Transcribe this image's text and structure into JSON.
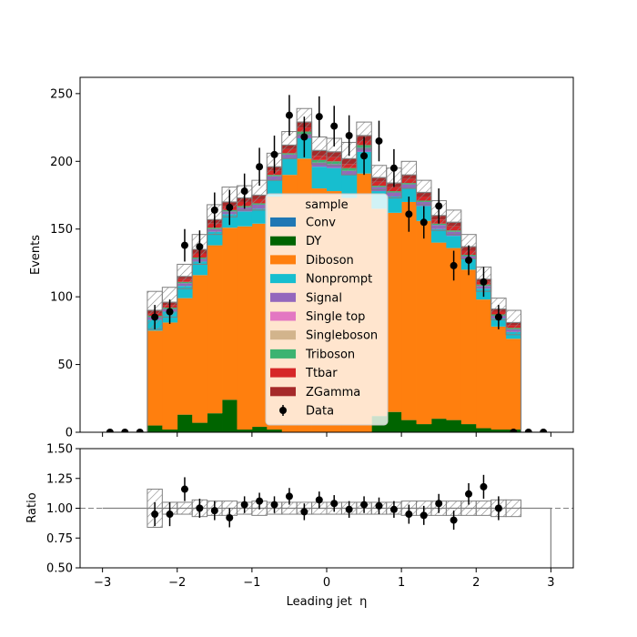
{
  "chart_data": {
    "type": "bar",
    "stacked": true,
    "xlabel": "Leading jet  η",
    "ylabel_top": "Events",
    "ylabel_bottom": "Ratio",
    "xlim": [
      -3.3,
      3.3
    ],
    "ylim_top": [
      0,
      262
    ],
    "ylim_bottom": [
      0.5,
      1.5
    ],
    "x_ticks": [
      "−3",
      "−2",
      "−1",
      "0",
      "1",
      "2",
      "3"
    ],
    "x_tick_values": [
      -3,
      -2,
      -1,
      0,
      1,
      2,
      3
    ],
    "y_ticks_top": [
      "0",
      "50",
      "100",
      "150",
      "200",
      "250"
    ],
    "y_tick_values_top": [
      0,
      50,
      100,
      150,
      200,
      250
    ],
    "y_ticks_bottom": [
      "0.50",
      "0.75",
      "1.00",
      "1.25",
      "1.50"
    ],
    "y_tick_values_bottom": [
      0.5,
      0.75,
      1.0,
      1.25,
      1.5
    ],
    "bin_edges": [
      -3.0,
      -2.8,
      -2.6,
      -2.4,
      -2.2,
      -2.0,
      -1.8,
      -1.6,
      -1.4,
      -1.2,
      -1.0,
      -0.8,
      -0.6,
      -0.4,
      -0.2,
      0.0,
      0.2,
      0.4,
      0.6,
      0.8,
      1.0,
      1.2,
      1.4,
      1.6,
      1.8,
      2.0,
      2.2,
      2.4,
      2.6,
      2.8,
      3.0
    ],
    "series": [
      {
        "name": "DY",
        "color": "#006400",
        "values": [
          0,
          0,
          0,
          5,
          2,
          13,
          7,
          14,
          24,
          2,
          4,
          2,
          0,
          0,
          0,
          0,
          0,
          0,
          12,
          15,
          9,
          6,
          10,
          9,
          6,
          3,
          2,
          2,
          0,
          0
        ]
      },
      {
        "name": "Diboson",
        "color": "#ff7f0e",
        "values": [
          0,
          0,
          0,
          70,
          79,
          86,
          109,
          124,
          127,
          150,
          150,
          172,
          190,
          202,
          180,
          178,
          173,
          191,
          153,
          147,
          161,
          150,
          130,
          127,
          114,
          95,
          76,
          67,
          0,
          0
        ]
      },
      {
        "name": "Nonprompt",
        "color": "#17becf",
        "values": [
          0,
          0,
          0,
          8,
          8,
          9,
          10,
          10,
          10,
          11,
          11,
          12,
          12,
          15,
          16,
          17,
          17,
          16,
          13,
          12,
          10,
          11,
          10,
          9,
          8,
          8,
          6,
          5,
          0,
          0
        ]
      },
      {
        "name": "Signal",
        "color": "#9467bd",
        "values": [
          0,
          0,
          0,
          2,
          2,
          2,
          2,
          2,
          2,
          3,
          3,
          3,
          3,
          3,
          3,
          3,
          3,
          3,
          3,
          3,
          3,
          3,
          3,
          3,
          2,
          2,
          2,
          2,
          0,
          0
        ]
      },
      {
        "name": "Single top",
        "color": "#e377c2",
        "values": [
          0,
          0,
          0,
          0,
          0,
          0,
          0,
          0,
          0,
          0,
          0,
          0,
          0,
          0,
          0,
          0,
          0,
          0,
          0,
          0,
          0,
          0,
          0,
          0,
          0,
          0,
          0,
          0,
          0,
          0
        ]
      },
      {
        "name": "Triboson",
        "color": "#3cb371",
        "values": [
          0,
          0,
          0,
          1,
          1,
          1,
          1,
          1,
          1,
          1,
          1,
          1,
          1,
          2,
          2,
          2,
          2,
          2,
          1,
          1,
          1,
          1,
          1,
          1,
          1,
          1,
          1,
          1,
          0,
          0
        ]
      },
      {
        "name": "Ttbar",
        "color": "#d62728",
        "values": [
          0,
          0,
          0,
          2,
          2,
          2,
          3,
          3,
          3,
          3,
          3,
          3,
          3,
          3,
          3,
          3,
          3,
          3,
          3,
          3,
          3,
          3,
          3,
          3,
          3,
          2,
          2,
          2,
          0,
          0
        ]
      },
      {
        "name": "ZGamma",
        "color": "#a52a2a",
        "values": [
          0,
          0,
          0,
          2,
          2,
          2,
          3,
          3,
          3,
          3,
          3,
          3,
          3,
          4,
          4,
          4,
          4,
          4,
          3,
          3,
          3,
          3,
          3,
          3,
          3,
          2,
          2,
          2,
          0,
          0
        ]
      }
    ],
    "uncertainty_top": [
      0,
      0,
      0,
      14,
      11,
      9,
      11,
      11,
      11,
      9,
      11,
      10,
      10,
      10,
      10,
      10,
      12,
      10,
      9,
      11,
      10,
      9,
      11,
      9,
      9,
      9,
      8,
      9,
      0,
      0
    ],
    "ratio_uncertainty": [
      0,
      0,
      0,
      0.16,
      0.05,
      0.05,
      0.07,
      0.06,
      0.06,
      0.05,
      0.06,
      0.05,
      0.05,
      0.05,
      0.05,
      0.05,
      0.05,
      0.05,
      0.05,
      0.05,
      0.06,
      0.06,
      0.06,
      0.06,
      0.06,
      0.06,
      0.07,
      0.07,
      0,
      0
    ],
    "data": {
      "name": "Data",
      "x": [
        -2.9,
        -2.7,
        -2.5,
        -2.3,
        -2.1,
        -1.9,
        -1.7,
        -1.5,
        -1.3,
        -1.1,
        -0.9,
        -0.7,
        -0.5,
        -0.3,
        -0.1,
        0.1,
        0.3,
        0.5,
        0.7,
        0.9,
        1.1,
        1.3,
        1.5,
        1.7,
        1.9,
        2.1,
        2.3,
        2.5,
        2.7,
        2.9
      ],
      "y": [
        0,
        0,
        0,
        85,
        89,
        138,
        137,
        164,
        166,
        178,
        196,
        205,
        234,
        218,
        233,
        226,
        219,
        204,
        215,
        195,
        161,
        155,
        167,
        123,
        127,
        111,
        85,
        0,
        0,
        0
      ],
      "yerr": [
        0,
        0,
        0,
        9,
        9,
        12,
        12,
        13,
        13,
        13,
        14,
        14,
        15,
        15,
        15,
        15,
        15,
        14,
        15,
        14,
        13,
        12,
        13,
        11,
        11,
        11,
        9,
        0,
        0,
        0
      ]
    },
    "ratio": {
      "x": [
        -2.3,
        -2.1,
        -1.9,
        -1.7,
        -1.5,
        -1.3,
        -1.1,
        -0.9,
        -0.7,
        -0.5,
        -0.3,
        -0.1,
        0.1,
        0.3,
        0.5,
        0.7,
        0.9,
        1.1,
        1.3,
        1.5,
        1.7,
        1.9,
        2.1,
        2.3
      ],
      "y": [
        0.95,
        0.95,
        1.16,
        1.0,
        0.98,
        0.92,
        1.03,
        1.06,
        1.03,
        1.1,
        0.97,
        1.07,
        1.04,
        0.99,
        1.03,
        1.02,
        0.99,
        0.95,
        0.94,
        1.04,
        0.9,
        1.12,
        1.18,
        1.0
      ],
      "yerr": [
        0.1,
        0.1,
        0.1,
        0.08,
        0.08,
        0.08,
        0.07,
        0.07,
        0.07,
        0.07,
        0.07,
        0.07,
        0.07,
        0.07,
        0.07,
        0.07,
        0.07,
        0.08,
        0.08,
        0.08,
        0.08,
        0.09,
        0.1,
        0.1
      ]
    },
    "legend": {
      "title": "sample",
      "placement": "center",
      "entries": [
        {
          "label": "Conv",
          "color": "#1f77b4",
          "kind": "patch"
        },
        {
          "label": "DY",
          "color": "#006400",
          "kind": "patch"
        },
        {
          "label": "Diboson",
          "color": "#ff7f0e",
          "kind": "patch"
        },
        {
          "label": "Nonprompt",
          "color": "#17becf",
          "kind": "patch"
        },
        {
          "label": "Signal",
          "color": "#9467bd",
          "kind": "patch"
        },
        {
          "label": "Single top",
          "color": "#e377c2",
          "kind": "patch"
        },
        {
          "label": "Singleboson",
          "color": "#d2b48c",
          "kind": "patch"
        },
        {
          "label": "Triboson",
          "color": "#3cb371",
          "kind": "patch"
        },
        {
          "label": "Ttbar",
          "color": "#d62728",
          "kind": "patch"
        },
        {
          "label": "ZGamma",
          "color": "#a52a2a",
          "kind": "patch"
        },
        {
          "label": "Data",
          "color": "#000000",
          "kind": "marker"
        }
      ]
    }
  }
}
